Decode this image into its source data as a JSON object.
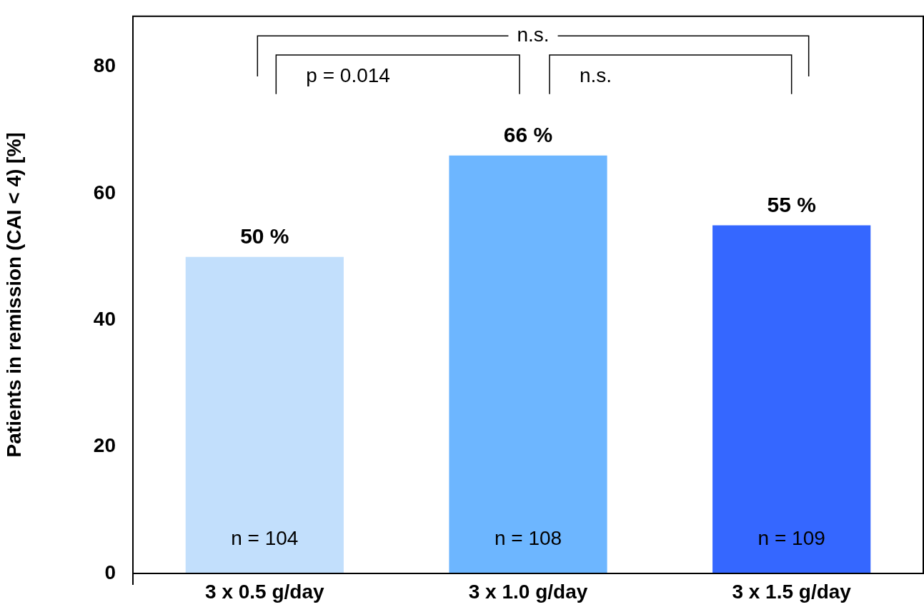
{
  "chart_data": {
    "type": "bar",
    "ylabel": "Patients in remission (CAI < 4) [%]",
    "categories": [
      "3 x 0.5 g/day",
      "3 x 1.0 g/day",
      "3 x 1.5 g/day"
    ],
    "values": [
      50,
      66,
      55
    ],
    "colors": [
      "#c2dffc",
      "#6db6ff",
      "#3567ff"
    ],
    "value_labels": [
      "50 %",
      "66 %",
      "55 %"
    ],
    "ylim": [
      0,
      88
    ],
    "yticks": [
      0,
      20,
      40,
      60,
      80
    ],
    "grid": false,
    "legend": false,
    "annotations": [
      "n.s.",
      "p = 0.014",
      "n.s.",
      "n = 104",
      "n = 108",
      "n = 109"
    ]
  }
}
